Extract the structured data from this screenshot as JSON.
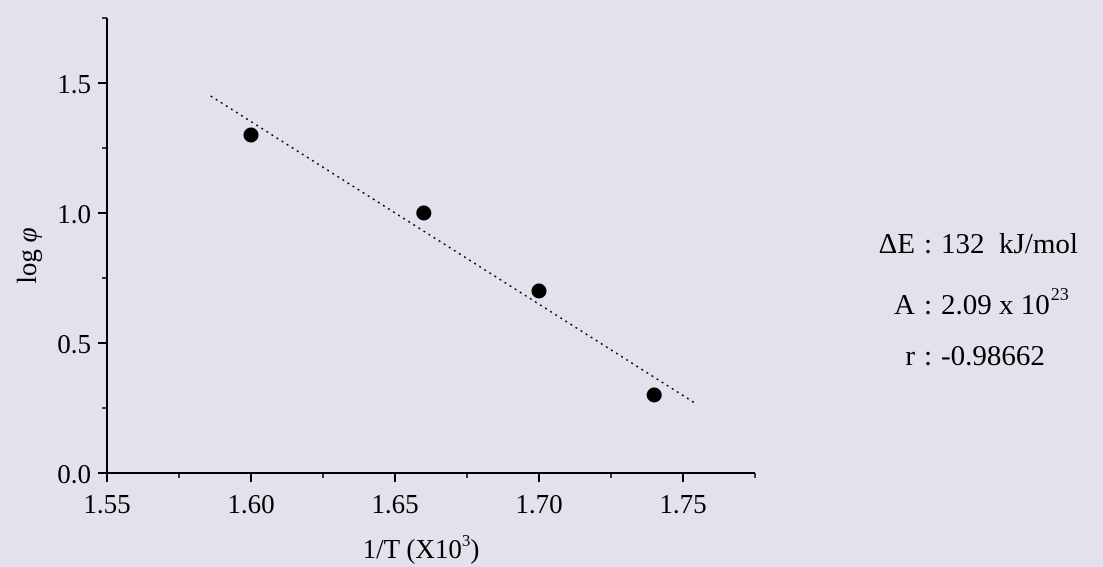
{
  "chart_data": {
    "type": "scatter",
    "title": "",
    "xlabel": "1/T (X10",
    "xlabel_sup": "3",
    "xlabel_suffix": ")",
    "ylabel": "log ",
    "ylabel_symbol": "φ",
    "xlim": [
      1.55,
      1.775
    ],
    "ylim": [
      0.0,
      1.75
    ],
    "x_ticks": [
      1.55,
      1.6,
      1.65,
      1.7,
      1.75
    ],
    "x_tick_labels": [
      "1.55",
      "1.60",
      "1.65",
      "1.70",
      "1.75"
    ],
    "x_minor_ticks": [
      1.575,
      1.625,
      1.675,
      1.725,
      1.775
    ],
    "y_ticks": [
      0.0,
      0.5,
      1.0,
      1.5
    ],
    "y_tick_labels": [
      "0.0",
      "0.5",
      "1.0",
      "1.5"
    ],
    "y_minor_ticks": [
      0.25,
      0.75,
      1.25,
      1.75
    ],
    "grid": false,
    "legend": "none",
    "series": [
      {
        "x": [
          1.6,
          1.66,
          1.7,
          1.74
        ],
        "y": [
          1.3,
          1.0,
          0.7,
          0.3
        ],
        "marker": "filled-circle",
        "color": "#000000"
      }
    ],
    "fit_line": {
      "x": [
        1.586,
        1.754
      ],
      "y": [
        1.45,
        0.27
      ],
      "style": "dotted",
      "color": "#000000"
    }
  },
  "stats": [
    {
      "key": "ΔE",
      "colon": ":",
      "value": "132  kJ/mol",
      "sup": ""
    },
    {
      "key": "A",
      "colon": ":",
      "value": "2.09 x 10",
      "sup": "23"
    },
    {
      "key": "r",
      "colon": ":",
      "value": "-0.98662",
      "sup": ""
    }
  ],
  "colors": {
    "background": "#e5e1ec",
    "ink": "#000000"
  }
}
